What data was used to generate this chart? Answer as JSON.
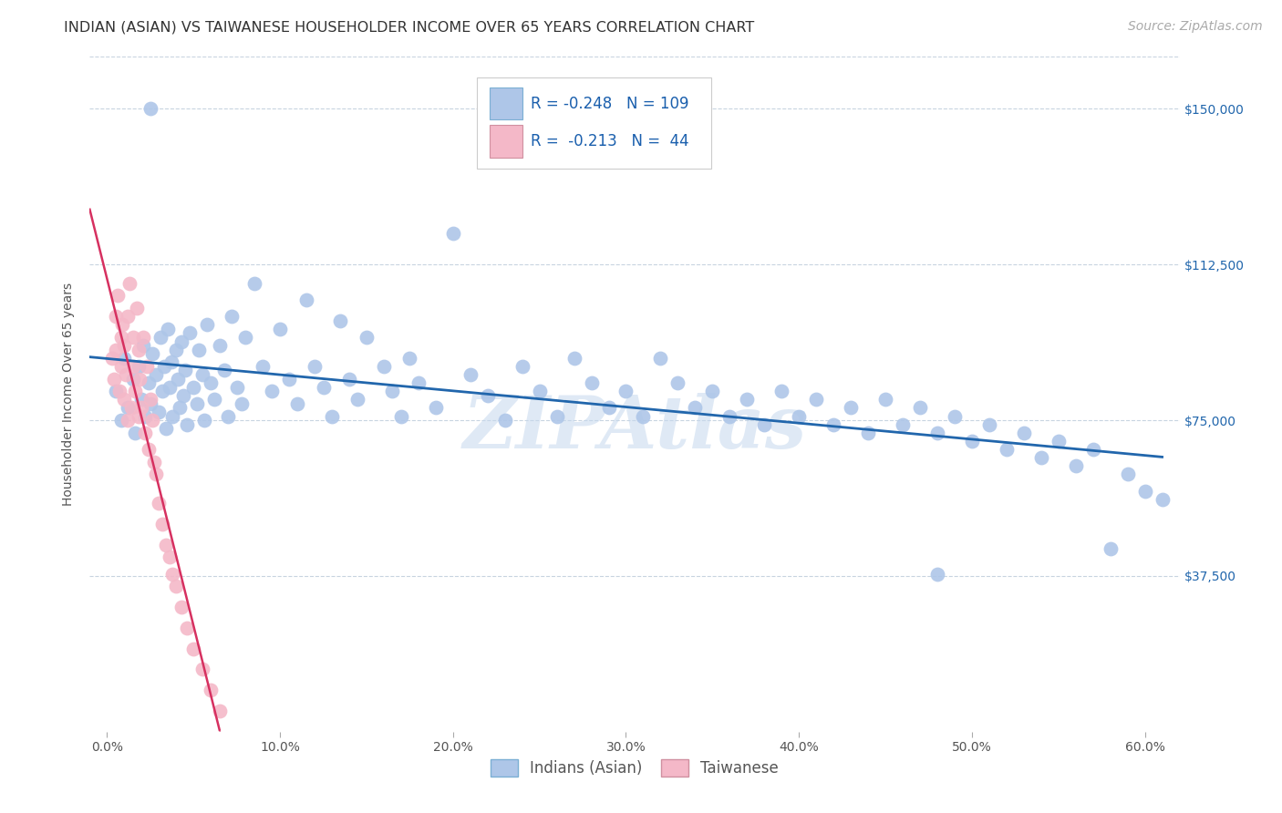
{
  "title": "INDIAN (ASIAN) VS TAIWANESE HOUSEHOLDER INCOME OVER 65 YEARS CORRELATION CHART",
  "source": "Source: ZipAtlas.com",
  "xlabel_ticks": [
    "0.0%",
    "10.0%",
    "20.0%",
    "30.0%",
    "40.0%",
    "50.0%",
    "60.0%"
  ],
  "xlabel_vals": [
    0.0,
    0.1,
    0.2,
    0.3,
    0.4,
    0.5,
    0.6
  ],
  "ylabel_ticks": [
    "$37,500",
    "$75,000",
    "$112,500",
    "$150,000"
  ],
  "ylabel_vals": [
    37500,
    75000,
    112500,
    150000
  ],
  "ylim": [
    0,
    162500
  ],
  "xlim": [
    -0.01,
    0.62
  ],
  "watermark": "ZIPAtlas",
  "legend_r1": "-0.248",
  "legend_n1": "109",
  "legend_r2": "-0.213",
  "legend_n2": "44",
  "indian_color": "#aec6e8",
  "taiwanese_color": "#f4b8c8",
  "indian_line_color": "#2166ac",
  "taiwanese_line_color": "#d63060",
  "background_color": "#ffffff",
  "grid_color": "#c8d4e0",
  "title_fontsize": 11.5,
  "axis_label_fontsize": 10,
  "tick_fontsize": 10,
  "legend_fontsize": 12,
  "source_fontsize": 10,
  "indian_x": [
    0.005,
    0.008,
    0.01,
    0.012,
    0.015,
    0.016,
    0.018,
    0.02,
    0.021,
    0.022,
    0.024,
    0.025,
    0.026,
    0.028,
    0.03,
    0.031,
    0.032,
    0.033,
    0.034,
    0.035,
    0.036,
    0.037,
    0.038,
    0.04,
    0.041,
    0.042,
    0.043,
    0.044,
    0.045,
    0.046,
    0.048,
    0.05,
    0.052,
    0.053,
    0.055,
    0.056,
    0.058,
    0.06,
    0.062,
    0.065,
    0.068,
    0.07,
    0.072,
    0.075,
    0.078,
    0.08,
    0.085,
    0.09,
    0.095,
    0.1,
    0.105,
    0.11,
    0.115,
    0.12,
    0.125,
    0.13,
    0.135,
    0.14,
    0.145,
    0.15,
    0.16,
    0.165,
    0.17,
    0.175,
    0.18,
    0.19,
    0.2,
    0.21,
    0.22,
    0.23,
    0.24,
    0.25,
    0.26,
    0.27,
    0.28,
    0.29,
    0.3,
    0.31,
    0.32,
    0.33,
    0.34,
    0.35,
    0.36,
    0.37,
    0.38,
    0.39,
    0.4,
    0.41,
    0.42,
    0.43,
    0.44,
    0.45,
    0.46,
    0.47,
    0.48,
    0.49,
    0.5,
    0.51,
    0.52,
    0.53,
    0.54,
    0.55,
    0.56,
    0.57,
    0.58,
    0.59,
    0.6,
    0.61,
    0.025,
    0.48
  ],
  "indian_y": [
    82000,
    75000,
    90000,
    78000,
    85000,
    72000,
    88000,
    80000,
    93000,
    76000,
    84000,
    79000,
    91000,
    86000,
    77000,
    95000,
    82000,
    88000,
    73000,
    97000,
    83000,
    89000,
    76000,
    92000,
    85000,
    78000,
    94000,
    81000,
    87000,
    74000,
    96000,
    83000,
    79000,
    92000,
    86000,
    75000,
    98000,
    84000,
    80000,
    93000,
    87000,
    76000,
    100000,
    83000,
    79000,
    95000,
    108000,
    88000,
    82000,
    97000,
    85000,
    79000,
    104000,
    88000,
    83000,
    76000,
    99000,
    85000,
    80000,
    95000,
    88000,
    82000,
    76000,
    90000,
    84000,
    78000,
    120000,
    86000,
    81000,
    75000,
    88000,
    82000,
    76000,
    90000,
    84000,
    78000,
    82000,
    76000,
    90000,
    84000,
    78000,
    82000,
    76000,
    80000,
    74000,
    82000,
    76000,
    80000,
    74000,
    78000,
    72000,
    80000,
    74000,
    78000,
    72000,
    76000,
    70000,
    74000,
    68000,
    72000,
    66000,
    70000,
    64000,
    68000,
    44000,
    62000,
    58000,
    56000,
    150000,
    38000
  ],
  "taiwanese_x": [
    0.003,
    0.004,
    0.005,
    0.005,
    0.006,
    0.007,
    0.008,
    0.008,
    0.009,
    0.01,
    0.01,
    0.011,
    0.012,
    0.012,
    0.013,
    0.014,
    0.015,
    0.015,
    0.016,
    0.017,
    0.018,
    0.018,
    0.019,
    0.02,
    0.021,
    0.022,
    0.023,
    0.024,
    0.025,
    0.026,
    0.027,
    0.028,
    0.03,
    0.032,
    0.034,
    0.036,
    0.038,
    0.04,
    0.043,
    0.046,
    0.05,
    0.055,
    0.06,
    0.065
  ],
  "taiwanese_y": [
    90000,
    85000,
    100000,
    92000,
    105000,
    82000,
    95000,
    88000,
    98000,
    80000,
    93000,
    86000,
    100000,
    75000,
    108000,
    78000,
    95000,
    88000,
    82000,
    102000,
    76000,
    92000,
    85000,
    78000,
    95000,
    72000,
    88000,
    68000,
    80000,
    75000,
    65000,
    62000,
    55000,
    50000,
    45000,
    42000,
    38000,
    35000,
    30000,
    25000,
    20000,
    15000,
    10000,
    5000
  ]
}
